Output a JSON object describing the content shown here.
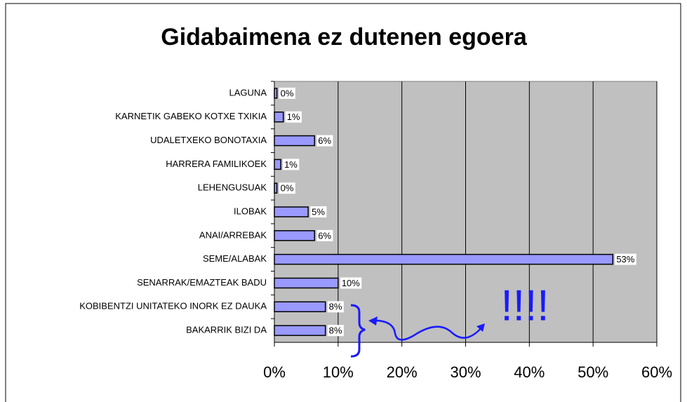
{
  "chart_data": {
    "type": "bar",
    "orientation": "horizontal",
    "title": "Gidabaimena ez dutenen egoera",
    "categories": [
      "LAGUNA",
      "KARNETIK GABEKO KOTXE TXIKIA",
      "UDALETXEKO BONOTAXIA",
      "HARRERA FAMILIKOEK",
      "LEHENGUSUAK",
      "ILOBAK",
      "ANAI/ARREBAK",
      "SEME/ALABAK",
      "SENARRAK/EMAZTEAK BADU",
      "KOBIBENTZI UNITATEKO INORK EZ  DAUKA",
      "BAKARRIK BIZI DA"
    ],
    "values": [
      0.4,
      1.4,
      6.3,
      1.0,
      0.4,
      5.3,
      6.3,
      53.1,
      10.0,
      8.0,
      8.0
    ],
    "value_labels": [
      "0%",
      "1%",
      "6%",
      "1%",
      "0%",
      "5%",
      "6%",
      "53%",
      "10%",
      "8%",
      "8%"
    ],
    "color": "#9999ff",
    "xlim": [
      0,
      60
    ],
    "xticks": [
      {
        "value": 0,
        "label": "0%"
      },
      {
        "value": 10,
        "label": "10%"
      },
      {
        "value": 20,
        "label": "20%"
      },
      {
        "value": 30,
        "label": "30%"
      },
      {
        "value": 40,
        "label": "40%"
      },
      {
        "value": 50,
        "label": "50%"
      },
      {
        "value": 60,
        "label": "60%"
      }
    ],
    "grid": true,
    "annotation": "!!!!"
  }
}
